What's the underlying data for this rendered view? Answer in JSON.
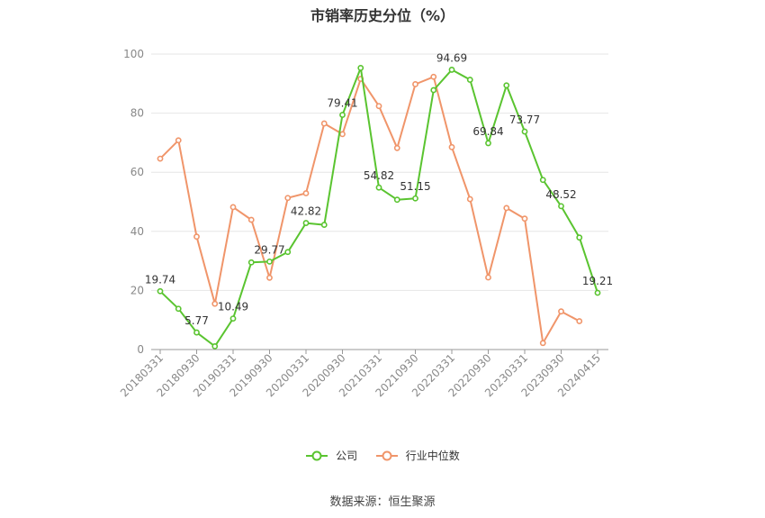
{
  "chart_data": {
    "type": "line",
    "title": "市销率历史分位（%）",
    "x": [
      "20180331",
      "20180630",
      "20180930",
      "20181231",
      "20190331",
      "20190630",
      "20190930",
      "20191231",
      "20200331",
      "20200630",
      "20200930",
      "20201231",
      "20210331",
      "20210630",
      "20210930",
      "20211231",
      "20220331",
      "20220630",
      "20220930",
      "20221231",
      "20230331",
      "20230630",
      "20230930",
      "20231231",
      "20240415"
    ],
    "x_tick_labels": [
      "20180331",
      "20180930",
      "20190331",
      "20190930",
      "20200331",
      "20200930",
      "20210331",
      "20210930",
      "20220331",
      "20220930",
      "20230331",
      "20230930",
      "20240415"
    ],
    "ylim": [
      0,
      100
    ],
    "y_ticks": [
      0,
      20,
      40,
      60,
      80,
      100
    ],
    "grid": true,
    "legend_position": "bottom",
    "series": [
      {
        "name": "公司",
        "color": "#5ac430",
        "values": [
          19.74,
          13.8,
          5.77,
          1.1,
          10.49,
          29.5,
          29.77,
          33.0,
          42.82,
          42.2,
          79.41,
          95.3,
          54.82,
          50.7,
          51.15,
          87.8,
          94.69,
          91.3,
          69.84,
          89.4,
          73.77,
          57.4,
          48.52,
          37.9,
          19.21
        ],
        "labels": [
          "19.74",
          "",
          "5.77",
          "",
          "10.49",
          "",
          "29.77",
          "",
          "42.82",
          "",
          "79.41",
          "",
          "54.82",
          "",
          "51.15",
          "",
          "94.69",
          "",
          "69.84",
          "",
          "73.77",
          "",
          "48.52",
          "",
          "19.21"
        ]
      },
      {
        "name": "行业中位数",
        "color": "#f0956a",
        "values": [
          64.6,
          70.8,
          38.2,
          15.5,
          48.2,
          43.9,
          24.3,
          51.3,
          52.9,
          76.5,
          72.9,
          91.6,
          82.4,
          68.2,
          89.8,
          92.3,
          68.5,
          50.9,
          24.4,
          47.9,
          44.3,
          2.2,
          12.9,
          9.6,
          null
        ]
      }
    ]
  },
  "source": "数据来源：恒生聚源"
}
